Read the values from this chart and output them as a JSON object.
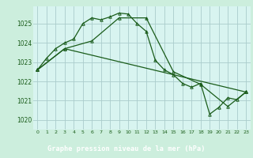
{
  "bg_color": "#cceedd",
  "plot_bg_color": "#d8f4f0",
  "grid_color": "#aacccc",
  "line_color": "#1a5c1a",
  "label_bg_color": "#2a6e2a",
  "label_text_color": "#ffffff",
  "title": "Graphe pression niveau de la mer (hPa)",
  "xlim": [
    -0.5,
    23.5
  ],
  "ylim": [
    1019.5,
    1025.9
  ],
  "yticks": [
    1020,
    1021,
    1022,
    1023,
    1024,
    1025
  ],
  "xticks": [
    0,
    1,
    2,
    3,
    4,
    5,
    6,
    7,
    8,
    9,
    10,
    11,
    12,
    13,
    14,
    15,
    16,
    17,
    18,
    19,
    20,
    21,
    22,
    23
  ],
  "xtick_labels": [
    "0",
    "1",
    "2",
    "3",
    "4",
    "5",
    "6",
    "7",
    "8",
    "9",
    "10",
    "11",
    "12",
    "13",
    "14",
    "15",
    "16",
    "17",
    "18",
    "19",
    "20",
    "21",
    "22",
    "23"
  ],
  "series": [
    {
      "x": [
        0,
        1,
        2,
        3,
        4,
        5,
        6,
        7,
        8,
        9,
        10,
        11,
        12,
        13,
        14,
        15,
        16,
        17,
        18,
        19,
        20,
        21,
        22,
        23
      ],
      "y": [
        1022.6,
        1023.2,
        1023.7,
        1024.0,
        1024.2,
        1025.0,
        1025.3,
        1025.2,
        1025.35,
        1025.55,
        1025.5,
        1025.0,
        1024.6,
        1023.1,
        1022.6,
        1022.35,
        1021.9,
        1021.7,
        1021.9,
        1020.3,
        1020.65,
        1021.15,
        1021.05,
        1021.45
      ]
    },
    {
      "x": [
        0,
        3,
        6,
        9,
        12,
        15,
        18,
        21,
        23
      ],
      "y": [
        1022.6,
        1023.7,
        1024.1,
        1025.3,
        1025.3,
        1022.5,
        1021.85,
        1020.7,
        1021.45
      ]
    },
    {
      "x": [
        0,
        3,
        23
      ],
      "y": [
        1022.6,
        1023.7,
        1021.45
      ]
    }
  ]
}
